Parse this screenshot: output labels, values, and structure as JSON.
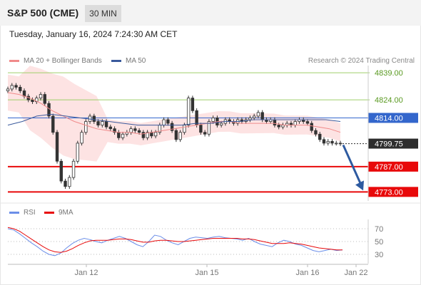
{
  "header": {
    "title": "S&P 500 (CME)",
    "timeframe": "30 MIN",
    "datetime": "Tuesday, January 16, 2024 7:24:30 AM CET"
  },
  "legend": {
    "ma20": "MA 20 + Bollinger Bands",
    "ma50": "MA 50",
    "copyright": "Research © 2024 Trading Central"
  },
  "rsi_legend": {
    "rsi": "RSI",
    "ma9": "9MA"
  },
  "colors": {
    "ma20": "#f08a8a",
    "ma50": "#3a5a9c",
    "bollinger_fill": "#fde3e3",
    "resistance": "#9fcf6a",
    "support": "#e8090a",
    "pivot": "#3366cc",
    "last": "#2d2d2d",
    "rsi": "#6b8ee8",
    "rsi_ma": "#e8090a",
    "arrow": "#2d5aa0"
  },
  "chart_data": [
    {
      "type": "candlestick",
      "title": "S&P 500 (CME)",
      "interval": "30 MIN",
      "y_range": [
        4768,
        4843
      ],
      "x_tick_labels": [
        "Jan 12",
        "Jan 15",
        "Jan 16",
        "Jan 22"
      ],
      "levels": [
        {
          "value": 4839.0,
          "label": "4839.00",
          "kind": "resistance"
        },
        {
          "value": 4824.0,
          "label": "4824.00",
          "kind": "resistance"
        },
        {
          "value": 4814.0,
          "label": "4814.00",
          "kind": "pivot"
        },
        {
          "value": 4799.75,
          "label": "4799.75",
          "kind": "last"
        },
        {
          "value": 4787.0,
          "label": "4787.00",
          "kind": "support"
        },
        {
          "value": 4773.0,
          "label": "4773.00",
          "kind": "support"
        }
      ],
      "close_series": [
        4830,
        4832,
        4831,
        4829,
        4826,
        4824,
        4823,
        4825,
        4827,
        4822,
        4815,
        4806,
        4790,
        4779,
        4776,
        4781,
        4790,
        4800,
        4806,
        4812,
        4815,
        4812,
        4810,
        4812,
        4809,
        4808,
        4806,
        4803,
        4805,
        4806,
        4808,
        4807,
        4806,
        4803,
        4806,
        4804,
        4806,
        4810,
        4813,
        4811,
        4807,
        4802,
        4806,
        4810,
        4825,
        4818,
        4810,
        4806,
        4805,
        4812,
        4814,
        4810,
        4811,
        4813,
        4812,
        4811,
        4813,
        4812,
        4813,
        4814,
        4815,
        4817,
        4813,
        4812,
        4813,
        4810,
        4809,
        4810,
        4811,
        4810,
        4812,
        4813,
        4812,
        4811,
        4807,
        4805,
        4802,
        4800,
        4801,
        4800,
        4800,
        4799.75
      ],
      "ma20": [
        4828,
        4827,
        4825,
        4822,
        4818,
        4815,
        4812,
        4810,
        4808,
        4807,
        4806,
        4806,
        4805,
        4806,
        4807,
        4808,
        4809,
        4810,
        4811,
        4812,
        4812,
        4811,
        4811,
        4811,
        4811,
        4810,
        4810,
        4810,
        4809,
        4808,
        4806
      ],
      "ma50": [
        4810,
        4812,
        4815,
        4816,
        4815,
        4814,
        4813,
        4812,
        4811,
        4810,
        4810,
        4810,
        4810,
        4811,
        4811,
        4812,
        4812,
        4813,
        4813,
        4813,
        4813,
        4813,
        4813,
        4812
      ],
      "forecast": {
        "from": 4799.75,
        "to": 4773.0,
        "direction": "down"
      }
    },
    {
      "type": "line",
      "title": "RSI",
      "y_range": [
        20,
        80
      ],
      "y_tick_labels": [
        "70",
        "50",
        "30"
      ],
      "series": [
        {
          "name": "RSI",
          "values": [
            70,
            68,
            62,
            55,
            48,
            42,
            35,
            30,
            28,
            32,
            40,
            47,
            52,
            55,
            53,
            50,
            48,
            52,
            55,
            58,
            55,
            50,
            45,
            42,
            50,
            60,
            58,
            52,
            48,
            45,
            50,
            55,
            57,
            56,
            55,
            57,
            58,
            56,
            55,
            54,
            52,
            55,
            50,
            46,
            44,
            42,
            48,
            52,
            50,
            46,
            44,
            40,
            36,
            34,
            36,
            38,
            36,
            37
          ]
        },
        {
          "name": "9MA",
          "values": [
            72,
            70,
            66,
            60,
            54,
            48,
            42,
            37,
            34,
            33,
            35,
            39,
            44,
            48,
            51,
            52,
            52,
            52,
            53,
            54,
            54,
            53,
            51,
            49,
            49,
            51,
            52,
            52,
            51,
            50,
            50,
            51,
            52,
            53,
            54,
            55,
            55,
            55,
            55,
            55,
            54,
            54,
            53,
            51,
            49,
            47,
            47,
            47,
            48,
            47,
            46,
            44,
            42,
            40,
            39,
            38,
            37,
            37
          ]
        }
      ]
    }
  ]
}
